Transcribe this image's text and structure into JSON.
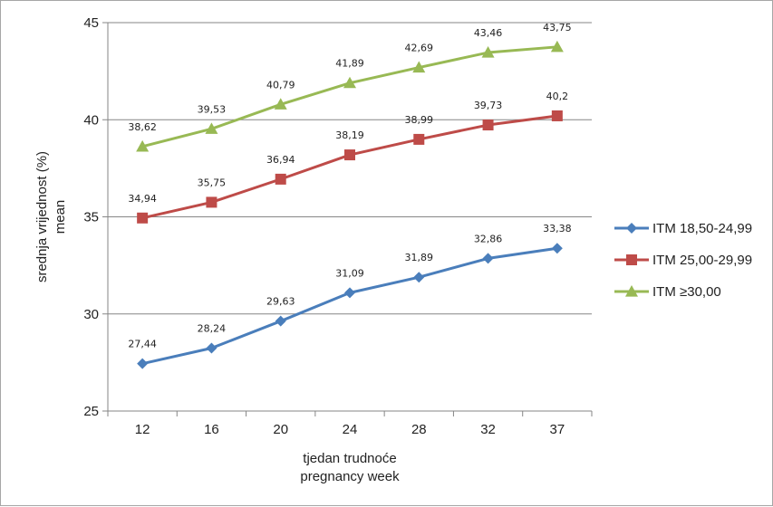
{
  "chart_data": {
    "type": "line",
    "categories": [
      "12",
      "16",
      "20",
      "24",
      "28",
      "32",
      "37"
    ],
    "series": [
      {
        "name": "ITM 18,50-24,99",
        "values": [
          27.44,
          28.24,
          29.63,
          31.09,
          31.89,
          32.86,
          33.38
        ],
        "labels": [
          "27,44",
          "28,24",
          "29,63",
          "31,09",
          "31,89",
          "32,86",
          "33,38"
        ],
        "color": "#4a7ebb",
        "marker": "diamond"
      },
      {
        "name": "ITM 25,00-29,99",
        "values": [
          34.94,
          35.75,
          36.94,
          38.19,
          38.99,
          39.73,
          40.2
        ],
        "labels": [
          "34,94",
          "35,75",
          "36,94",
          "38,19",
          "38,99",
          "39,73",
          "40,2"
        ],
        "color": "#be4b48",
        "marker": "square"
      },
      {
        "name": "ITM ≥30,00",
        "values": [
          38.62,
          39.53,
          40.79,
          41.89,
          42.69,
          43.46,
          43.75
        ],
        "labels": [
          "38,62",
          "39,53",
          "40,79",
          "41,89",
          "42,69",
          "43,46",
          "43,75"
        ],
        "color": "#98b954",
        "marker": "triangle"
      }
    ],
    "ylim": [
      25,
      45
    ],
    "yticks": [
      25,
      30,
      35,
      40,
      45
    ],
    "ytick_labels": [
      "25",
      "30",
      "35",
      "40",
      "45"
    ],
    "xlabel": [
      "tjedan trudnoće",
      "pregnancy week"
    ],
    "ylabel": [
      "srednja vrijednost (%)",
      "mean"
    ],
    "grid": true,
    "legend_position": "right"
  }
}
